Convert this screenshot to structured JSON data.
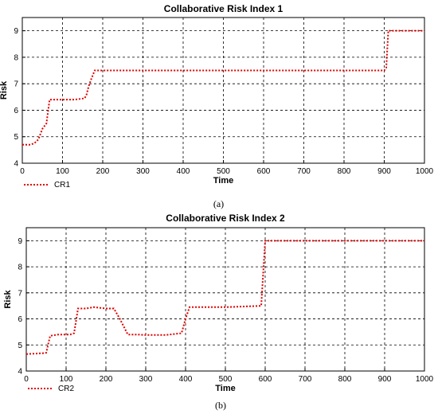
{
  "chart_data": [
    {
      "type": "line",
      "title": "Collaborative Risk Index 1",
      "xlabel": "Time",
      "ylabel": "Risk",
      "xlim": [
        0,
        1000
      ],
      "ylim": [
        4,
        9.5
      ],
      "x_ticks": [
        0,
        100,
        200,
        300,
        400,
        500,
        600,
        700,
        800,
        900,
        1000
      ],
      "y_ticks": [
        4,
        5,
        6,
        7,
        8,
        9
      ],
      "grid": true,
      "legend": "bottom-left",
      "caption": "(a)",
      "series": [
        {
          "name": "CR1",
          "color": "#e00000",
          "x": [
            0,
            20,
            30,
            40,
            50,
            60,
            68,
            80,
            100,
            130,
            155,
            160,
            165,
            172,
            180,
            200,
            400,
            600,
            800,
            900,
            905,
            910,
            1000
          ],
          "y": [
            4.7,
            4.7,
            4.75,
            4.9,
            5.3,
            5.5,
            6.4,
            6.4,
            6.4,
            6.4,
            6.45,
            6.6,
            6.9,
            7.2,
            7.5,
            7.5,
            7.5,
            7.5,
            7.5,
            7.5,
            7.6,
            9.0,
            9.0
          ]
        }
      ]
    },
    {
      "type": "line",
      "title": "Collaborative Risk Index 2",
      "xlabel": "Time",
      "ylabel": "Risk",
      "xlim": [
        0,
        1000
      ],
      "ylim": [
        4,
        9.5
      ],
      "x_ticks": [
        0,
        100,
        200,
        300,
        400,
        500,
        600,
        700,
        800,
        900,
        1000
      ],
      "y_ticks": [
        4,
        5,
        6,
        7,
        8,
        9
      ],
      "grid": true,
      "legend": "bottom-left",
      "caption": "(b)",
      "series": [
        {
          "name": "CR2",
          "color": "#e00000",
          "x": [
            0,
            40,
            50,
            60,
            80,
            110,
            120,
            130,
            140,
            150,
            170,
            200,
            220,
            235,
            255,
            280,
            300,
            350,
            390,
            400,
            410,
            440,
            500,
            590,
            600,
            610,
            1000
          ],
          "y": [
            4.65,
            4.68,
            4.7,
            5.35,
            5.4,
            5.4,
            5.45,
            6.4,
            6.4,
            6.4,
            6.45,
            6.4,
            6.4,
            6.0,
            5.4,
            5.4,
            5.38,
            5.38,
            5.45,
            6.0,
            6.45,
            6.45,
            6.45,
            6.5,
            9.0,
            9.0,
            9.0
          ]
        }
      ]
    }
  ]
}
